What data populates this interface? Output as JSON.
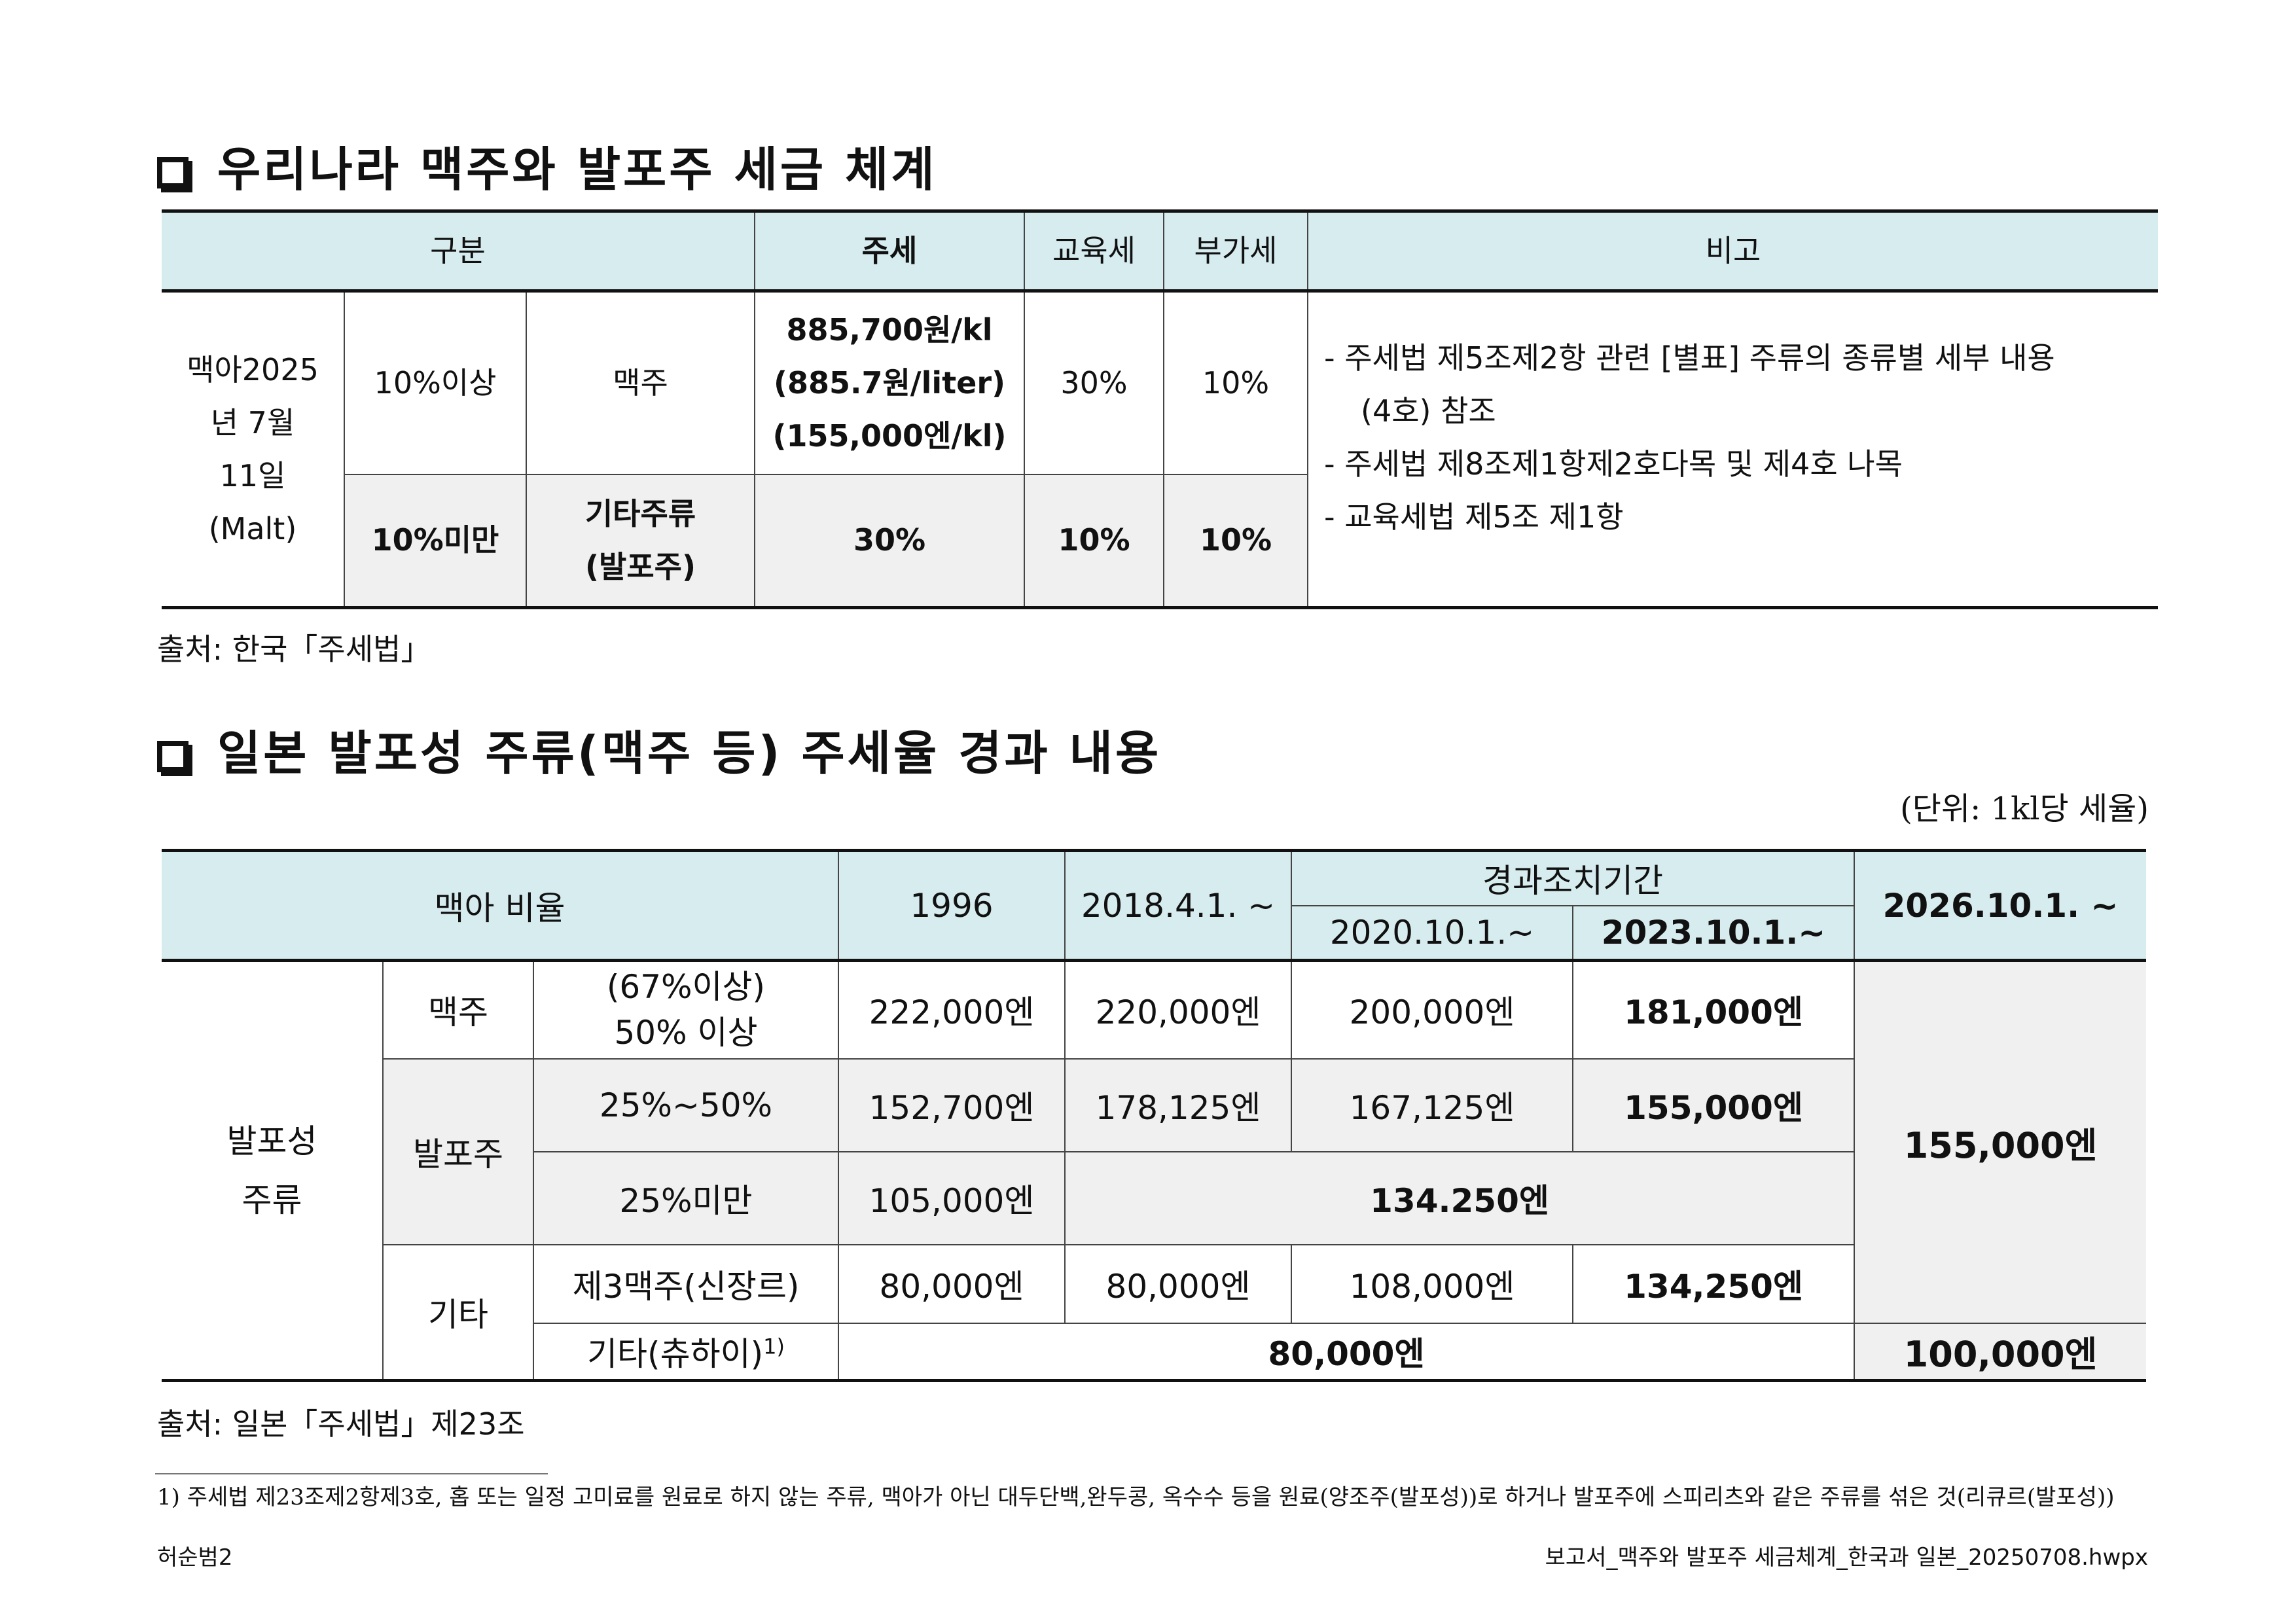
{
  "section1": {
    "title": "우리나라 맥주와 발포주 세금 체계",
    "headers": {
      "category": "구분",
      "liquor_tax": "주세",
      "education_tax": "교육세",
      "vat": "부가세",
      "remarks": "비고"
    },
    "malt_label": [
      "맥아2025",
      "년 7월",
      "11일",
      "(Malt)"
    ],
    "rows": [
      {
        "ratio": "10%이상",
        "type": "맥주",
        "liquor_tax": [
          "885,700원/kl",
          "(885.7원/liter)",
          "(155,000엔/kl)"
        ],
        "education_tax": "30%",
        "vat": "10%"
      },
      {
        "ratio": "10%미만",
        "type": [
          "기타주류",
          "(발포주)"
        ],
        "liquor_tax": "30%",
        "education_tax": "10%",
        "vat": "10%"
      }
    ],
    "remarks": [
      "- 주세법 제5조제2항 관련 [별표] 주류의 종류별 세부 내용",
      "(4호) 참조",
      "- 주세법 제8조제1항제2호다목 및 제4호 나목",
      "- 교육세법 제5조 제1항"
    ],
    "source": "출처: 한국「주세법」"
  },
  "section2": {
    "title": "일본 발포성 주류(맥주 등) 주세율 경과 내용",
    "unit": "(단위: 1kl당 세율)",
    "headers": {
      "malt_ratio": "맥아 비율",
      "y1996": "1996",
      "y2018": "2018.4.1. ~",
      "transition": "경과조치기간",
      "y2020": "2020.10.1.~",
      "y2023": "2023.10.1.~",
      "y2026": "2026.10.1. ~"
    },
    "group": [
      "발포성",
      "주류"
    ],
    "beer": {
      "label": "맥주",
      "ratio": [
        "(67%이상)",
        "50% 이상"
      ],
      "values": [
        "222,000엔",
        "220,000엔",
        "200,000엔",
        "181,000엔"
      ]
    },
    "happoshu": {
      "label": "발포주",
      "row1": {
        "ratio": "25%~50%",
        "values": [
          "152,700엔",
          "178,125엔",
          "167,125엔",
          "155,000엔"
        ]
      },
      "row2": {
        "ratio": "25%미만",
        "v1996": "105,000엔",
        "merged": "134.250엔"
      }
    },
    "final_2026": "155,000엔",
    "other": {
      "label": "기타",
      "row1": {
        "ratio": "제3맥주(신장르)",
        "values": [
          "80,000엔",
          "80,000엔",
          "108,000엔",
          "134,250엔"
        ]
      },
      "row2": {
        "ratio": "기타(츄하이)",
        "footnote_mark": "1)",
        "merged": "80,000엔",
        "final": "100,000엔"
      }
    },
    "source": "출처: 일본「주세법」제23조"
  },
  "footnote": {
    "mark": "1)",
    "text": "주세법 제23조제2항제3호, 홉 또는 일정 고미료를 원료로 하지 않는 주류, 맥아가 아닌 대두단백,완두콩, 옥수수 등을 원료(양조주(발포성))로 하거나 발포주에 스피리츠와 같은 주류를 섞은 것(리큐르(발포성))"
  },
  "footer": {
    "left": "허순범2",
    "right": "보고서_맥주와 발포주 세금체계_한국과 일본_20250708.hwpx"
  }
}
